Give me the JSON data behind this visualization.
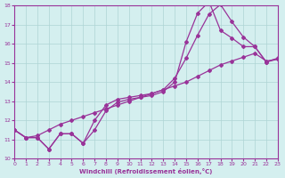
{
  "xlabel": "Windchill (Refroidissement éolien,°C)",
  "xlim": [
    0,
    23
  ],
  "ylim": [
    10,
    18
  ],
  "xticks": [
    0,
    1,
    2,
    3,
    4,
    5,
    6,
    7,
    8,
    9,
    10,
    11,
    12,
    13,
    14,
    15,
    16,
    17,
    18,
    19,
    20,
    21,
    22,
    23
  ],
  "yticks": [
    10,
    11,
    12,
    13,
    14,
    15,
    16,
    17,
    18
  ],
  "background_color": "#d4efef",
  "grid_color": "#aed4d4",
  "line_color": "#993399",
  "line1_x": [
    0,
    1,
    2,
    3,
    4,
    5,
    6,
    7,
    8,
    9,
    10,
    11,
    12,
    13,
    14,
    15,
    16,
    17,
    18,
    19,
    20,
    21,
    22,
    23
  ],
  "line1_y": [
    11.5,
    11.1,
    11.2,
    11.5,
    11.8,
    12.0,
    12.2,
    12.4,
    12.6,
    12.8,
    13.0,
    13.2,
    13.4,
    13.6,
    13.8,
    14.0,
    14.3,
    14.6,
    14.9,
    15.1,
    15.3,
    15.5,
    15.1,
    15.2
  ],
  "line2_x": [
    0,
    1,
    2,
    3,
    4,
    5,
    6,
    7,
    8,
    9,
    10,
    11,
    12,
    13,
    14,
    15,
    16,
    17,
    18,
    19,
    20,
    21,
    22,
    23
  ],
  "line2_y": [
    11.5,
    11.1,
    11.1,
    10.5,
    11.3,
    11.3,
    10.8,
    12.0,
    12.8,
    13.1,
    13.2,
    13.3,
    13.4,
    13.6,
    14.2,
    15.25,
    16.45,
    17.55,
    18.05,
    17.15,
    16.35,
    15.85,
    15.05,
    15.25
  ],
  "line3_x": [
    0,
    1,
    2,
    3,
    4,
    5,
    6,
    7,
    8,
    9,
    10,
    11,
    12,
    13,
    14,
    15,
    16,
    17,
    18,
    19,
    20,
    21,
    22,
    23
  ],
  "line3_y": [
    11.5,
    11.1,
    11.1,
    10.5,
    11.3,
    11.3,
    10.8,
    11.5,
    12.5,
    12.95,
    13.1,
    13.2,
    13.3,
    13.5,
    14.0,
    16.1,
    17.6,
    18.2,
    16.7,
    16.3,
    15.85,
    15.85,
    15.05,
    15.2
  ]
}
